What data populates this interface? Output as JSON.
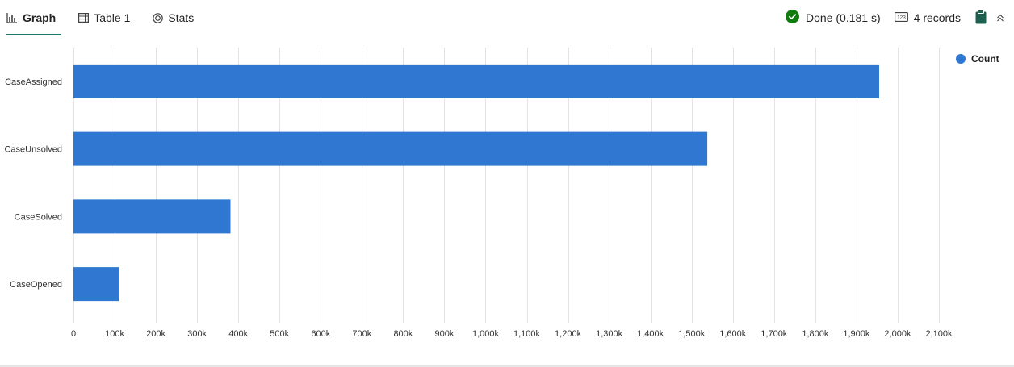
{
  "tabs": [
    {
      "label": "Graph",
      "icon": "bar-chart-icon",
      "active": true
    },
    {
      "label": "Table 1",
      "icon": "table-icon",
      "active": false
    },
    {
      "label": "Stats",
      "icon": "stats-icon",
      "active": false
    }
  ],
  "status": {
    "done_text": "Done (0.181 s)",
    "records_text": "4 records",
    "done_color": "#107c10"
  },
  "colors": {
    "bar": "#2f77d0",
    "grid": "#e3e3e3",
    "accent": "#1f7a6c"
  },
  "chart_data": {
    "type": "bar",
    "orientation": "horizontal",
    "categories": [
      "CaseAssigned",
      "CaseUnsolved",
      "CaseSolved",
      "CaseOpened"
    ],
    "series": [
      {
        "name": "Count",
        "values": [
          1955000,
          1538000,
          381000,
          111000
        ]
      }
    ],
    "xlim": [
      0,
      2100000
    ],
    "x_ticks": [
      0,
      100000,
      200000,
      300000,
      400000,
      500000,
      600000,
      700000,
      800000,
      900000,
      1000000,
      1100000,
      1200000,
      1300000,
      1400000,
      1500000,
      1600000,
      1700000,
      1800000,
      1900000,
      2000000,
      2100000
    ],
    "x_tick_labels": [
      "0",
      "100k",
      "200k",
      "300k",
      "400k",
      "500k",
      "600k",
      "700k",
      "800k",
      "900k",
      "1,000k",
      "1,100k",
      "1,200k",
      "1,300k",
      "1,400k",
      "1,500k",
      "1,600k",
      "1,700k",
      "1,800k",
      "1,900k",
      "2,000k",
      "2,100k"
    ],
    "grid": true,
    "legend_position": "top-right",
    "title": "",
    "xlabel": "",
    "ylabel": ""
  }
}
